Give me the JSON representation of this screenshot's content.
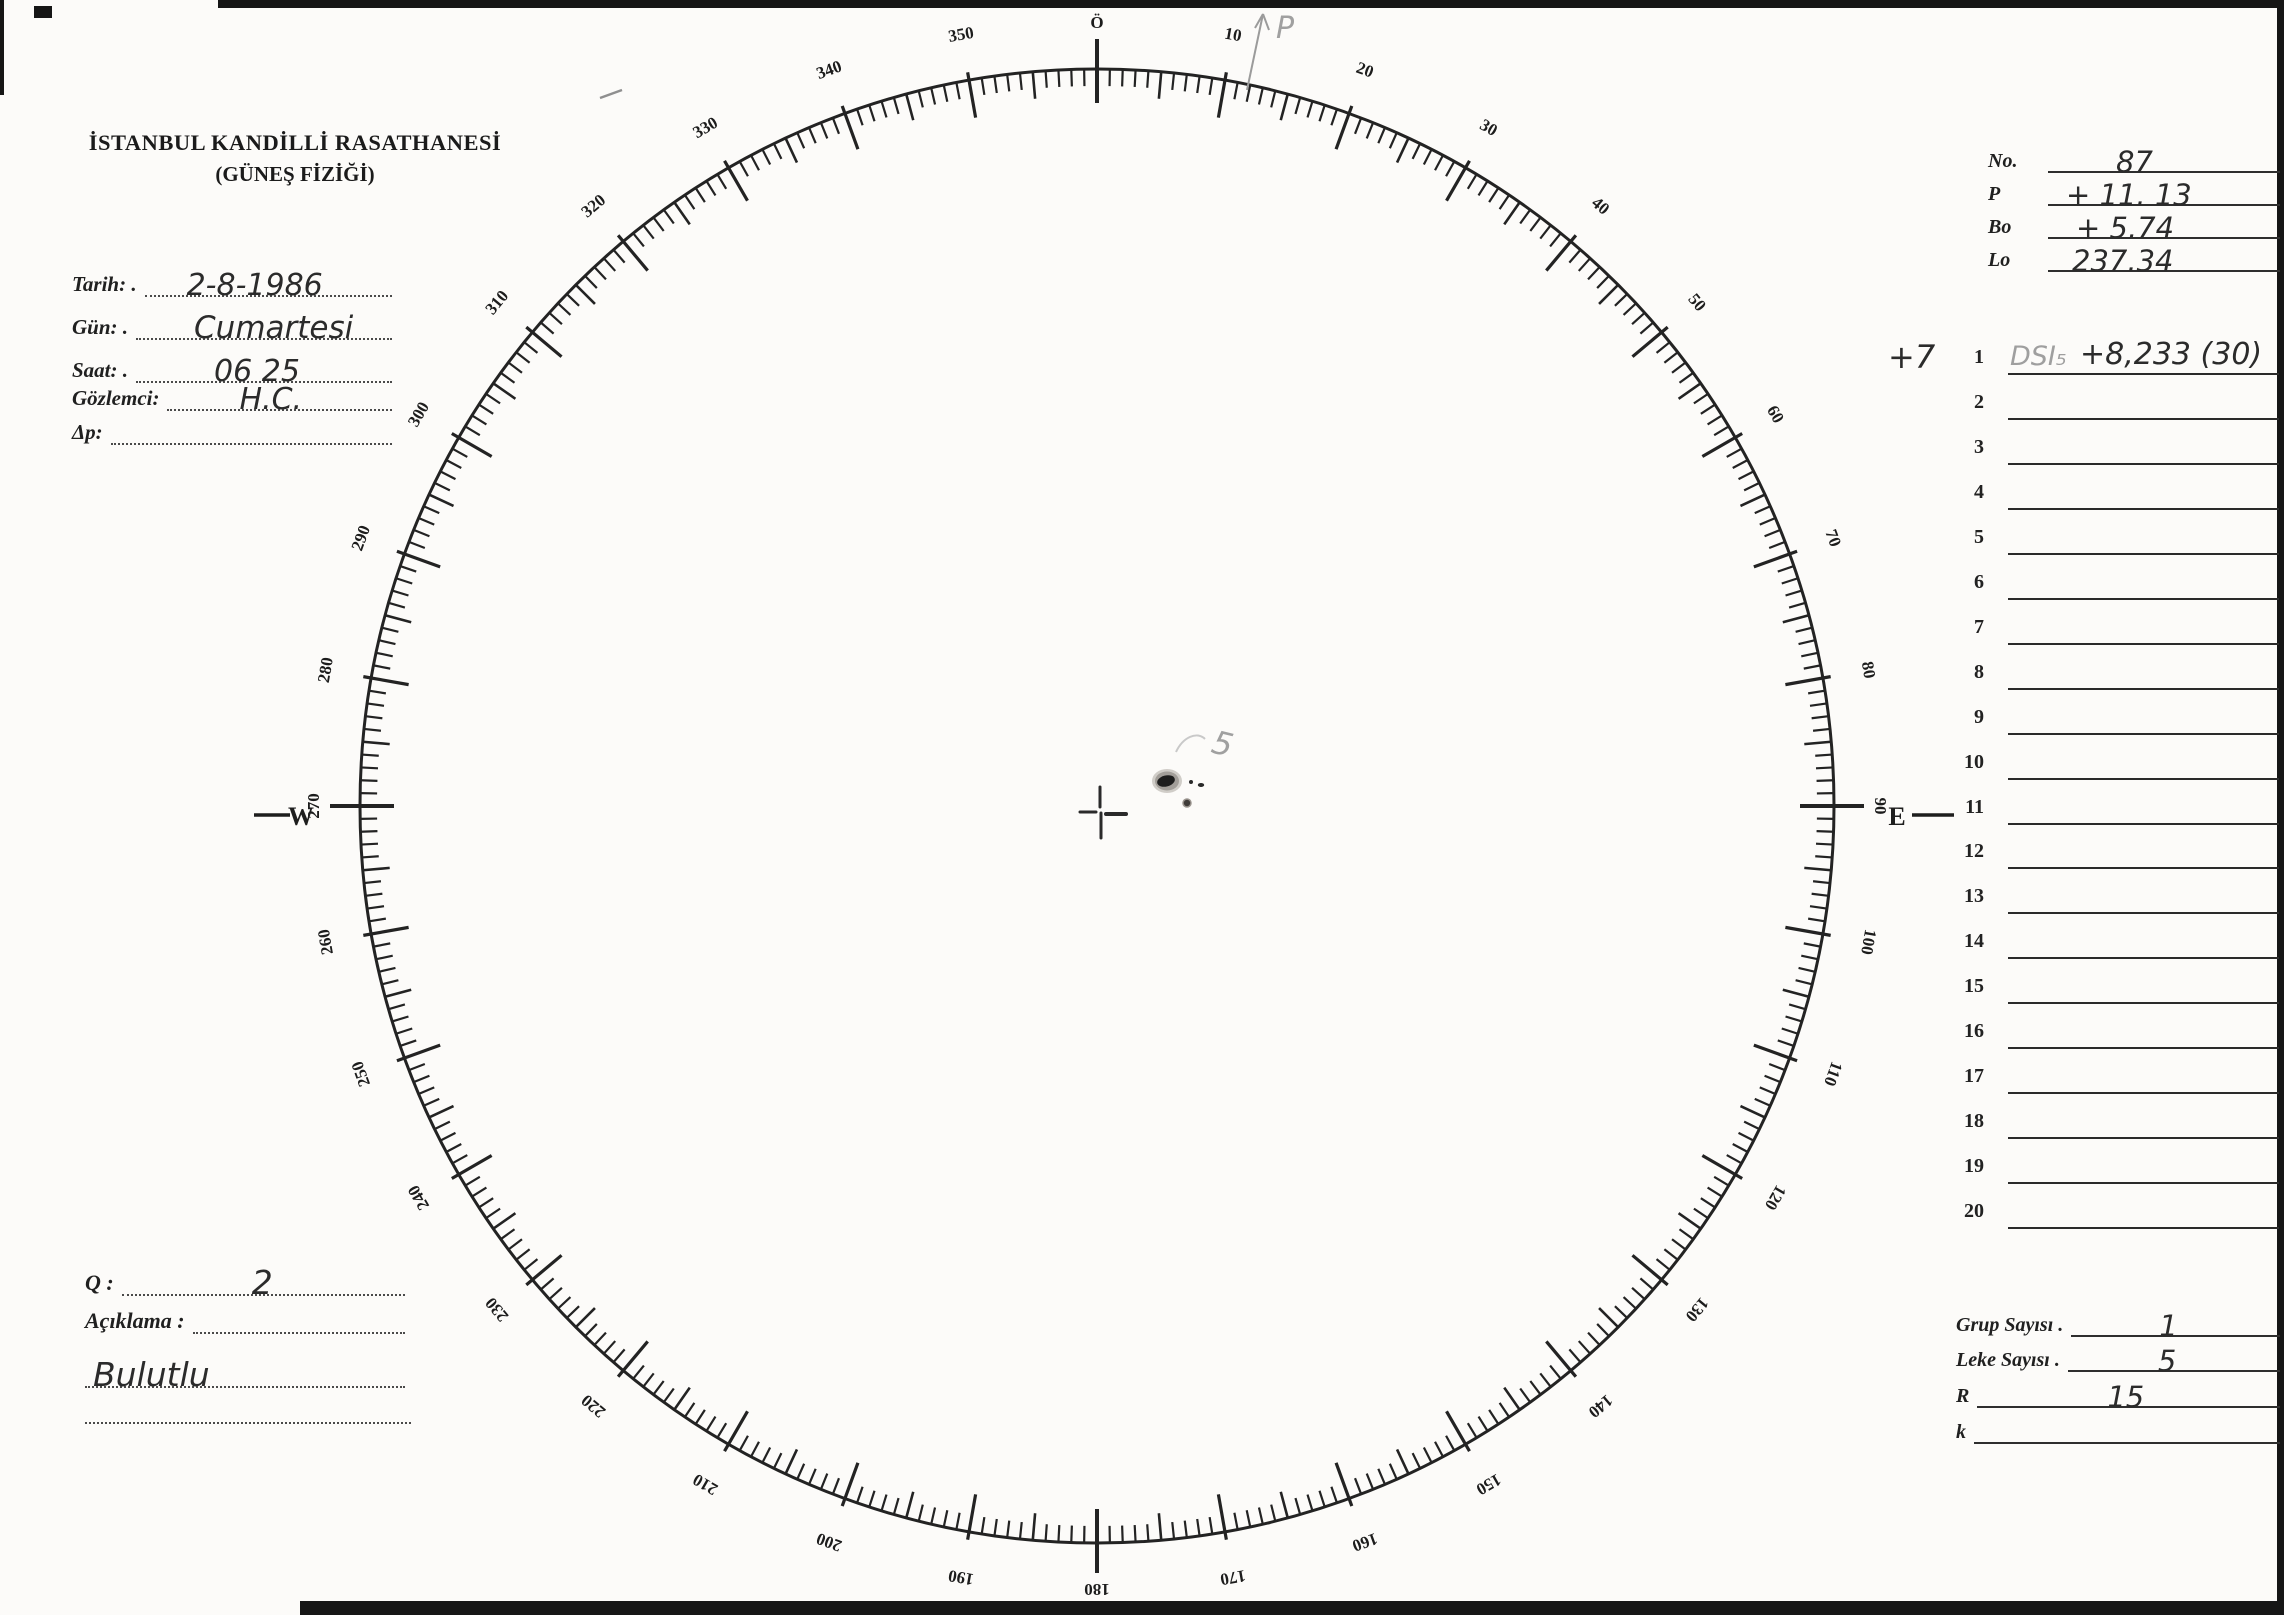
{
  "header": {
    "line1": "İSTANBUL KANDİLLİ RASATHANESİ",
    "line2": "(GÜNEŞ FİZİĞİ)"
  },
  "observation_fields": [
    {
      "label": "Tarih: .",
      "value": "2-8-1986"
    },
    {
      "label": "Gün: .",
      "value": "Cumartesi"
    },
    {
      "label": "Saat: .",
      "value": "06 25"
    },
    {
      "label": "Gözlemci:",
      "value": "H.C."
    },
    {
      "label": "Δp:",
      "value": ""
    }
  ],
  "ephemeris": [
    {
      "label": "No.",
      "value": "87"
    },
    {
      "label": "P",
      "value": "+ 11. 13"
    },
    {
      "label": "Bo",
      "value": "+ 5.74"
    },
    {
      "label": "Lo",
      "value": "237.34"
    }
  ],
  "spot_list": {
    "margin_note": "+7",
    "rows": [
      {
        "num": "1",
        "pencil": "DSI₅",
        "ink": "+8,233 (30)"
      },
      {
        "num": "2",
        "pencil": "",
        "ink": ""
      },
      {
        "num": "3",
        "pencil": "",
        "ink": ""
      },
      {
        "num": "4",
        "pencil": "",
        "ink": ""
      },
      {
        "num": "5",
        "pencil": "",
        "ink": ""
      },
      {
        "num": "6",
        "pencil": "",
        "ink": ""
      },
      {
        "num": "7",
        "pencil": "",
        "ink": ""
      },
      {
        "num": "8",
        "pencil": "",
        "ink": ""
      },
      {
        "num": "9",
        "pencil": "",
        "ink": ""
      },
      {
        "num": "10",
        "pencil": "",
        "ink": ""
      },
      {
        "num": "11",
        "pencil": "",
        "ink": ""
      },
      {
        "num": "12",
        "pencil": "",
        "ink": ""
      },
      {
        "num": "13",
        "pencil": "",
        "ink": ""
      },
      {
        "num": "14",
        "pencil": "",
        "ink": ""
      },
      {
        "num": "15",
        "pencil": "",
        "ink": ""
      },
      {
        "num": "16",
        "pencil": "",
        "ink": ""
      },
      {
        "num": "17",
        "pencil": "",
        "ink": ""
      },
      {
        "num": "18",
        "pencil": "",
        "ink": ""
      },
      {
        "num": "19",
        "pencil": "",
        "ink": ""
      },
      {
        "num": "20",
        "pencil": "",
        "ink": ""
      }
    ]
  },
  "summary": [
    {
      "label": "Grup Sayısı .",
      "value": "1"
    },
    {
      "label": "Leke Sayısı .",
      "value": "5"
    },
    {
      "label": "R",
      "value": "15"
    },
    {
      "label": "k",
      "value": ""
    }
  ],
  "quality": {
    "label": "Q :",
    "value": "2"
  },
  "remarks": {
    "label": "Açıklama :",
    "value": "Bulutlu"
  },
  "protractor": {
    "degree_labels": [
      "Ö",
      "10",
      "20",
      "30",
      "40",
      "50",
      "60",
      "70",
      "80",
      "90",
      "100",
      "110",
      "120",
      "130",
      "140",
      "150",
      "160",
      "170",
      "180",
      "190",
      "200",
      "210",
      "220",
      "230",
      "240",
      "250",
      "260",
      "270",
      "280",
      "290",
      "300",
      "310",
      "320",
      "330",
      "340",
      "350"
    ],
    "tick_step_deg": 1,
    "mid_tick_deg": 5,
    "major_tick_deg": 10,
    "west_label": "W",
    "east_label": "E",
    "p_angle_label": "P",
    "spot_pencil_note": "5"
  }
}
